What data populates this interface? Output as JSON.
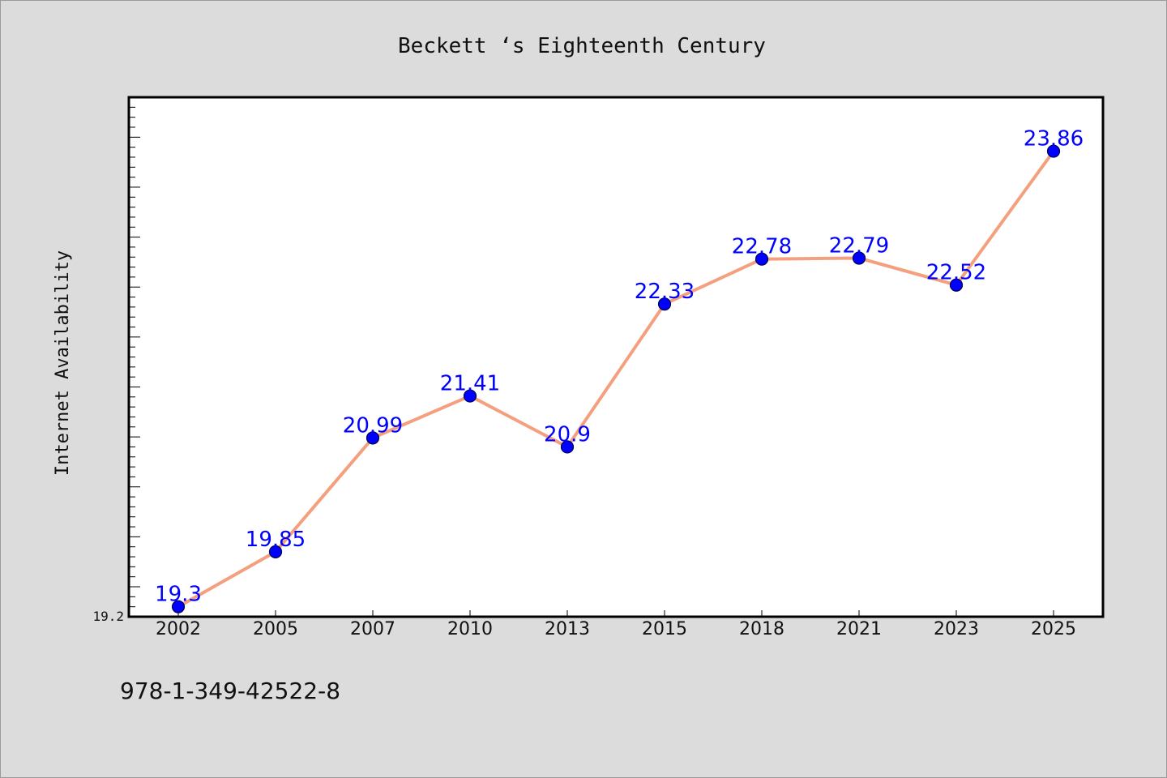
{
  "chart_data": {
    "type": "line",
    "title": "Beckett ‘s Eighteenth Century",
    "xlabel": "",
    "ylabel": "Internet Availability",
    "categories": [
      "2002",
      "2005",
      "2007",
      "2010",
      "2013",
      "2015",
      "2018",
      "2021",
      "2023",
      "2025"
    ],
    "series": [
      {
        "values": [
          19.3,
          19.85,
          20.99,
          21.41,
          20.9,
          22.33,
          22.78,
          22.79,
          22.52,
          23.86
        ]
      }
    ],
    "data_labels": [
      "19.3",
      "19.85",
      "20.99",
      "21.41",
      "20.9",
      "22.33",
      "22.78",
      "22.79",
      "22.52",
      "23.86"
    ],
    "ylim": [
      19.2,
      24.4
    ],
    "y_tick_labels": [
      "19.2"
    ],
    "grid": false,
    "legend": "none",
    "colors": {
      "line": "#f4a07f",
      "marker": "#0000ff",
      "label": "#0000ff",
      "background": "#dcdcdc",
      "plot_background": "#ffffff"
    }
  },
  "footer": {
    "isbn": "978-1-349-42522-8"
  }
}
